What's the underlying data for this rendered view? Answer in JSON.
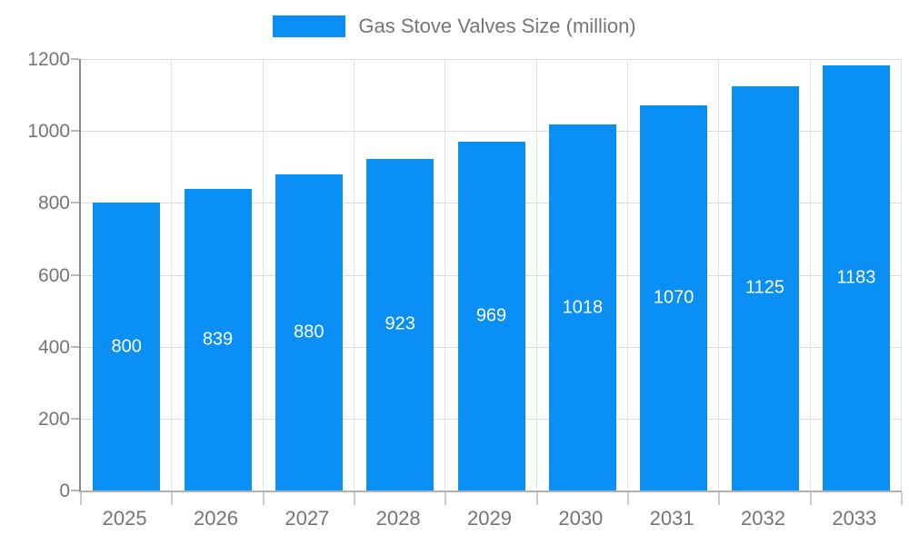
{
  "chart_data": {
    "type": "bar",
    "title": "Gas Stove Valves Size (million)",
    "categories": [
      "2025",
      "2026",
      "2027",
      "2028",
      "2029",
      "2030",
      "2031",
      "2032",
      "2033"
    ],
    "values": [
      800,
      839,
      880,
      923,
      969,
      1018,
      1070,
      1125,
      1183
    ],
    "xlabel": "",
    "ylabel": "",
    "ylim": [
      0,
      1200
    ],
    "y_ticks": [
      0,
      200,
      400,
      600,
      800,
      1000,
      1200
    ],
    "grid": "both",
    "legend_position": "top-center",
    "value_labels": "centered-inside-bars",
    "colors": {
      "bar": "#0a90f5",
      "value_text": "#ffffff",
      "axis_text": "#757575",
      "gridline": "#dcdcdc",
      "y_axis_line": "#8a8a8a",
      "x_axis_line": "#b0b0b0"
    }
  }
}
